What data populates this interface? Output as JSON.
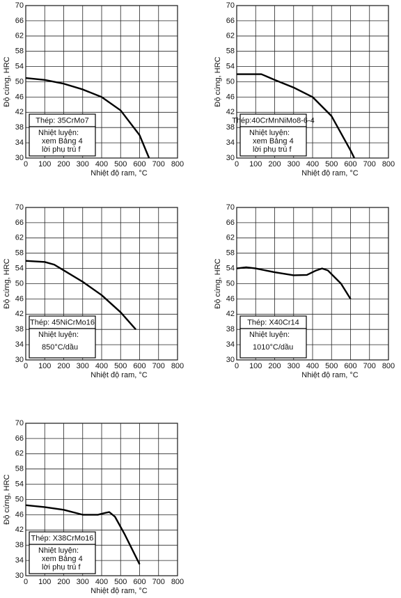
{
  "chart_data": [
    {
      "type": "line",
      "x": [
        0,
        100,
        200,
        300,
        400,
        500,
        600,
        650
      ],
      "values": [
        51,
        50.5,
        49.5,
        48,
        46,
        42.5,
        36,
        30
      ],
      "color": "#000000",
      "xlim": [
        0,
        800
      ],
      "ylim": [
        30,
        70
      ],
      "xticks": [
        0,
        100,
        200,
        300,
        400,
        500,
        600,
        700,
        800
      ],
      "yticks": [
        30,
        34,
        38,
        42,
        46,
        50,
        54,
        58,
        62,
        66,
        70
      ],
      "grid": true,
      "xlabel": "Nhiệt độ ram, °C",
      "ylabel": "Độ cứng, HRC",
      "steel": "Thép: 35CrMo7",
      "treatment": [
        "Nhiệt luyện:",
        "xem Bảng 4",
        "lời phụ trú f"
      ]
    },
    {
      "type": "line",
      "x": [
        0,
        100,
        130,
        200,
        300,
        400,
        500,
        600,
        620
      ],
      "values": [
        52,
        52,
        52,
        50.5,
        48.5,
        46,
        41,
        32,
        30
      ],
      "color": "#000000",
      "xlim": [
        0,
        800
      ],
      "ylim": [
        30,
        70
      ],
      "xticks": [
        0,
        100,
        200,
        300,
        400,
        500,
        600,
        700,
        800
      ],
      "yticks": [
        30,
        34,
        38,
        42,
        46,
        50,
        54,
        58,
        62,
        66,
        70
      ],
      "grid": true,
      "xlabel": "Nhiệt độ ram, °C",
      "ylabel": "Độ cứng, HRC",
      "steel": "Thép:40CrMnNiMo8-6-4",
      "treatment": [
        "Nhiệt luyện:",
        "xem Bảng 4",
        "lời phụ trú f"
      ]
    },
    {
      "type": "line",
      "x": [
        0,
        100,
        150,
        200,
        300,
        400,
        500,
        580
      ],
      "values": [
        56,
        55.7,
        55,
        53.5,
        50.5,
        47,
        42.5,
        38
      ],
      "color": "#000000",
      "xlim": [
        0,
        800
      ],
      "ylim": [
        30,
        70
      ],
      "xticks": [
        0,
        100,
        200,
        300,
        400,
        500,
        600,
        700,
        800
      ],
      "yticks": [
        30,
        34,
        38,
        42,
        46,
        50,
        54,
        58,
        62,
        66,
        70
      ],
      "grid": true,
      "xlabel": "Nhiệt độ ram, °C",
      "ylabel": "Độ cứng, HRC",
      "steel": "Thép: 45NiCrMo16",
      "treatment": [
        "Nhiệt luyện:",
        "850°C/dầu"
      ]
    },
    {
      "type": "line",
      "x": [
        0,
        50,
        100,
        200,
        300,
        370,
        420,
        450,
        480,
        550,
        600
      ],
      "values": [
        54,
        54.3,
        54,
        53,
        52.2,
        52.3,
        53.5,
        54,
        53.5,
        50,
        46
      ],
      "color": "#000000",
      "xlim": [
        0,
        800
      ],
      "ylim": [
        30,
        70
      ],
      "xticks": [
        0,
        100,
        200,
        300,
        400,
        500,
        600,
        700,
        800
      ],
      "yticks": [
        30,
        34,
        38,
        42,
        46,
        50,
        54,
        58,
        62,
        66,
        70
      ],
      "grid": true,
      "xlabel": "Nhiệt độ ram, °C",
      "ylabel": "Độ cứng, HRC",
      "steel": "Thép: X40Cr14",
      "treatment": [
        "Nhiệt luyện:",
        "1010°C/dầu"
      ]
    },
    {
      "type": "line",
      "x": [
        0,
        100,
        200,
        300,
        380,
        420,
        440,
        470,
        520,
        600
      ],
      "values": [
        48.5,
        48,
        47.3,
        46,
        46,
        46.5,
        46.7,
        45.5,
        41,
        33
      ],
      "color": "#000000",
      "xlim": [
        0,
        800
      ],
      "ylim": [
        30,
        70
      ],
      "xticks": [
        0,
        100,
        200,
        300,
        400,
        500,
        600,
        700,
        800
      ],
      "yticks": [
        30,
        34,
        38,
        42,
        46,
        50,
        54,
        58,
        62,
        66,
        70
      ],
      "grid": true,
      "xlabel": "Nhiệt độ ram, °C",
      "ylabel": "Độ cứng, HRC",
      "steel": "Thép: X38CrMo16",
      "treatment": [
        "Nhiệt luyện:",
        "xem Bảng 4",
        "lời phụ trú f"
      ]
    }
  ]
}
